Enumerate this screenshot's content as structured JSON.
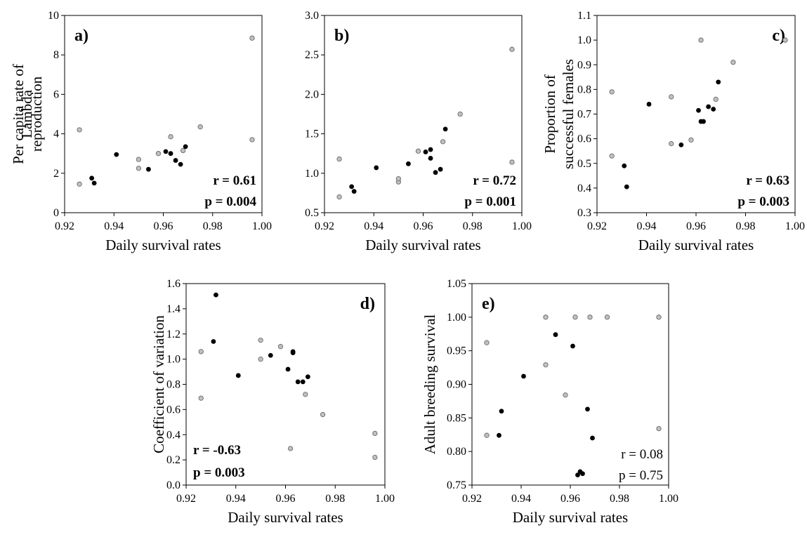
{
  "colors": {
    "filled": "#000000",
    "open": "#c0c0c0",
    "axis": "#000000"
  },
  "chart_data": [
    {
      "id": "a",
      "type": "scatter",
      "panel_label": "a)",
      "xlabel": "Daily survival rates",
      "ylabel": [
        "Per capita rate of",
        "reproduction"
      ],
      "xlim": [
        0.92,
        1.0
      ],
      "ylim": [
        0,
        10
      ],
      "xticks": [
        "0.92",
        "0.94",
        "0.96",
        "0.98",
        "1.00"
      ],
      "yticks": [
        "0",
        "2",
        "4",
        "6",
        "8",
        "10"
      ],
      "stat_r": "r  = 0.61",
      "stat_p": "p = 0.004",
      "stat_bold": true,
      "series": [
        {
          "marker": "filled",
          "x": [
            0.931,
            0.932,
            0.941,
            0.954,
            0.961,
            0.963,
            0.965,
            0.967,
            0.969
          ],
          "y": [
            1.75,
            1.5,
            2.95,
            2.2,
            3.1,
            3.0,
            2.65,
            2.45,
            3.35
          ]
        },
        {
          "marker": "open",
          "x": [
            0.926,
            0.926,
            0.95,
            0.95,
            0.958,
            0.963,
            0.968,
            0.975,
            0.996,
            0.996
          ],
          "y": [
            1.45,
            4.2,
            2.25,
            2.7,
            3.0,
            3.85,
            3.15,
            4.35,
            3.7,
            8.85
          ]
        }
      ]
    },
    {
      "id": "b",
      "type": "scatter",
      "panel_label": "b)",
      "xlabel": "Daily survival rates",
      "ylabel": [
        "Lambda"
      ],
      "xlim": [
        0.92,
        1.0
      ],
      "ylim": [
        0.5,
        3.0
      ],
      "xticks": [
        "0.92",
        "0.94",
        "0.96",
        "0.98",
        "1.00"
      ],
      "yticks": [
        "0.5",
        "1.0",
        "1.5",
        "2.0",
        "2.5",
        "3.0"
      ],
      "stat_r": "r  = 0.72",
      "stat_p": "p = 0.001",
      "stat_bold": true,
      "series": [
        {
          "marker": "filled",
          "x": [
            0.931,
            0.932,
            0.941,
            0.954,
            0.961,
            0.963,
            0.963,
            0.965,
            0.967,
            0.969
          ],
          "y": [
            0.83,
            0.77,
            1.07,
            1.12,
            1.27,
            1.3,
            1.19,
            1.01,
            1.05,
            1.56
          ]
        },
        {
          "marker": "open",
          "x": [
            0.926,
            0.926,
            0.95,
            0.95,
            0.958,
            0.968,
            0.975,
            0.996,
            0.996
          ],
          "y": [
            0.7,
            1.18,
            0.89,
            0.93,
            1.28,
            1.4,
            1.75,
            1.14,
            2.57
          ]
        }
      ]
    },
    {
      "id": "c",
      "type": "scatter",
      "panel_label": "c)",
      "xlabel": "Daily survival rates",
      "ylabel": [
        "Proportion of",
        "successful females"
      ],
      "xlim": [
        0.92,
        1.0
      ],
      "ylim": [
        0.3,
        1.1
      ],
      "xticks": [
        "0.92",
        "0.94",
        "0.96",
        "0.98",
        "1.00"
      ],
      "yticks": [
        "0.3",
        "0.4",
        "0.5",
        "0.6",
        "0.7",
        "0.8",
        "0.9",
        "1.0",
        "1.1"
      ],
      "stat_r": "r  = 0.63",
      "stat_p": "p = 0.003",
      "stat_bold": true,
      "series": [
        {
          "marker": "filled",
          "x": [
            0.931,
            0.932,
            0.941,
            0.954,
            0.961,
            0.962,
            0.963,
            0.965,
            0.967,
            0.969
          ],
          "y": [
            0.49,
            0.405,
            0.74,
            0.575,
            0.715,
            0.67,
            0.67,
            0.73,
            0.72,
            0.83
          ]
        },
        {
          "marker": "open",
          "x": [
            0.926,
            0.926,
            0.95,
            0.95,
            0.958,
            0.962,
            0.968,
            0.975,
            0.996,
            0.996
          ],
          "y": [
            0.53,
            0.79,
            0.58,
            0.77,
            0.595,
            1.0,
            0.76,
            0.91,
            1.0,
            1.0
          ]
        }
      ]
    },
    {
      "id": "d",
      "type": "scatter",
      "panel_label": "d)",
      "xlabel": "Daily survival rates",
      "ylabel": [
        "Coefficient of variation"
      ],
      "xlim": [
        0.92,
        1.0
      ],
      "ylim": [
        0,
        1.6
      ],
      "xticks": [
        "0.92",
        "0.94",
        "0.96",
        "0.98",
        "1.00"
      ],
      "yticks": [
        "0.0",
        "0.2",
        "0.4",
        "0.6",
        "0.8",
        "1.0",
        "1.2",
        "1.4",
        "1.6"
      ],
      "stat_r": "r  = -0.63",
      "stat_p": "p = 0.003",
      "stat_bold": true,
      "series": [
        {
          "marker": "filled",
          "x": [
            0.931,
            0.932,
            0.941,
            0.954,
            0.961,
            0.963,
            0.963,
            0.965,
            0.967,
            0.969
          ],
          "y": [
            1.14,
            1.51,
            0.87,
            1.03,
            0.92,
            1.05,
            1.06,
            0.82,
            0.82,
            0.86
          ]
        },
        {
          "marker": "open",
          "x": [
            0.926,
            0.926,
            0.95,
            0.95,
            0.958,
            0.962,
            0.968,
            0.975,
            0.996,
            0.996
          ],
          "y": [
            0.69,
            1.06,
            1.0,
            1.15,
            1.1,
            0.29,
            0.72,
            0.56,
            0.41,
            0.22
          ]
        }
      ]
    },
    {
      "id": "e",
      "type": "scatter",
      "panel_label": "e)",
      "xlabel": "Daily survival rates",
      "ylabel": [
        "Adult breeding survival"
      ],
      "xlim": [
        0.92,
        1.0
      ],
      "ylim": [
        0.75,
        1.05
      ],
      "xticks": [
        "0.92",
        "0.94",
        "0.96",
        "0.98",
        "1.00"
      ],
      "yticks": [
        "0.75",
        "0.80",
        "0.85",
        "0.90",
        "0.95",
        "1.00",
        "1.05"
      ],
      "stat_r": "r  = 0.08",
      "stat_p": "p = 0.75",
      "stat_bold": false,
      "series": [
        {
          "marker": "filled",
          "x": [
            0.931,
            0.932,
            0.941,
            0.954,
            0.961,
            0.963,
            0.964,
            0.965,
            0.967,
            0.969
          ],
          "y": [
            0.824,
            0.86,
            0.912,
            0.974,
            0.957,
            0.765,
            0.77,
            0.767,
            0.863,
            0.82
          ]
        },
        {
          "marker": "open",
          "x": [
            0.926,
            0.926,
            0.95,
            0.95,
            0.958,
            0.962,
            0.968,
            0.975,
            0.996,
            0.996
          ],
          "y": [
            0.824,
            0.962,
            0.929,
            1.0,
            0.884,
            1.0,
            1.0,
            1.0,
            1.0,
            0.834
          ]
        }
      ]
    }
  ]
}
